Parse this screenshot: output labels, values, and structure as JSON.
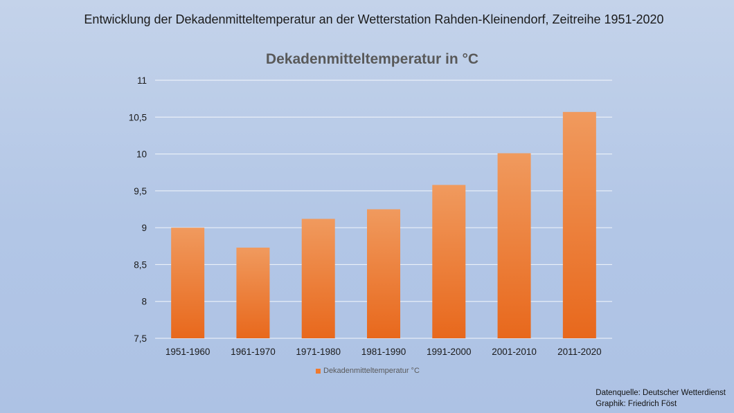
{
  "headline": "Entwicklung der Dekadenmitteltemperatur an der Wetterstation Rahden-Kleinendorf, Zeitreihe 1951-2020",
  "footer": {
    "source": "Datenquelle: Deutscher Wetterdienst",
    "graphic": "Graphik: Friedrich Föst"
  },
  "colors": {
    "bar_top": "#f09a5e",
    "bar_bottom": "#e8681c",
    "gridline": "#ffffff",
    "axis_text": "#1a1a1a"
  },
  "chart_data": {
    "type": "bar",
    "title": "Dekadenmitteltemperatur in °C",
    "xlabel": "",
    "ylabel": "",
    "ylim": [
      7.5,
      11
    ],
    "yticks": [
      "7,5",
      "8",
      "8,5",
      "9",
      "9,5",
      "10",
      "10,5",
      "11"
    ],
    "ytick_values": [
      7.5,
      8,
      8.5,
      9,
      9.5,
      10,
      10.5,
      11
    ],
    "grid": true,
    "legend_position": "bottom",
    "categories": [
      "1951-1960",
      "1961-1970",
      "1971-1980",
      "1981-1990",
      "1991-2000",
      "2001-2010",
      "2011-2020"
    ],
    "series": [
      {
        "name": "Dekadenmitteltemperatur °C",
        "values": [
          9.0,
          8.73,
          9.12,
          9.25,
          9.58,
          10.01,
          10.57
        ]
      }
    ]
  }
}
